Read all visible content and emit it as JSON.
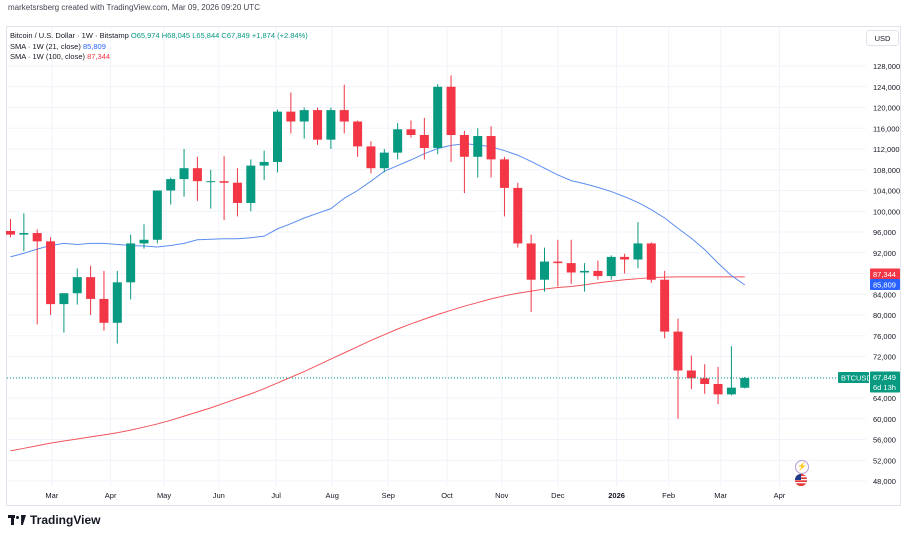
{
  "header": {
    "publisher_line": "marketsrsberg created with TradingView.com, Mar 09, 2026 09:20 UTC"
  },
  "legend": {
    "symbol_line": "Bitcoin / U.S. Dollar · 1W · Bitstamp",
    "ohlc": {
      "o": "O65,974",
      "h": "H68,045",
      "l": "L65,844",
      "c": "C67,849",
      "change": "+1,874 (+2.84%)"
    },
    "sma21_label": "SMA · 1W (21, close)",
    "sma21_value": "85,809",
    "sma100_label": "SMA · 1W (100, close)",
    "sma100_value": "87,344"
  },
  "currency_button": "USD",
  "footer_logo_text": "TradingView",
  "colors": {
    "up": "#089981",
    "down": "#f23645",
    "sma21": "#5b8def",
    "sma100": "#f2545b",
    "grid": "#f0f3fa",
    "axis_text": "#131722"
  },
  "icons": [
    "tradingview-logo-icon",
    "lightning-icon",
    "us-flag-icon"
  ],
  "chart_data": {
    "type": "candlestick",
    "timeframe": "1W",
    "y_axis": {
      "ylim": [
        44000,
        132000
      ],
      "tick_labels": [
        "48,000",
        "52,000",
        "56,000",
        "60,000",
        "64,000",
        "68,000",
        "72,000",
        "76,000",
        "80,000",
        "84,000",
        "88,000",
        "92,000",
        "96,000",
        "100,000",
        "104,000",
        "108,000",
        "112,000",
        "116,000",
        "120,000",
        "124,000",
        "128,000"
      ],
      "tick_values": [
        48000,
        52000,
        56000,
        60000,
        64000,
        68000,
        72000,
        76000,
        80000,
        84000,
        88000,
        92000,
        96000,
        100000,
        104000,
        108000,
        112000,
        116000,
        120000,
        124000,
        128000
      ]
    },
    "x_axis": {
      "labels": [
        "Mar",
        "Apr",
        "May",
        "Jun",
        "Jul",
        "Aug",
        "Sep",
        "Oct",
        "Nov",
        "Dec",
        "2026",
        "Feb",
        "Mar",
        "Apr"
      ],
      "label_week_index": [
        3.1,
        7.5,
        11.5,
        15.6,
        19.9,
        24.1,
        28.3,
        32.7,
        36.8,
        41,
        45.4,
        49.3,
        53.2,
        57.6
      ]
    },
    "grid": true,
    "candles": [
      {
        "o": 96200,
        "h": 98500,
        "l": 95000,
        "c": 95500
      },
      {
        "o": 95500,
        "h": 99600,
        "l": 92300,
        "c": 95800
      },
      {
        "o": 95800,
        "h": 96500,
        "l": 78200,
        "c": 94200
      },
      {
        "o": 94200,
        "h": 95000,
        "l": 80000,
        "c": 82100
      },
      {
        "o": 82100,
        "h": 84000,
        "l": 76600,
        "c": 84200
      },
      {
        "o": 84200,
        "h": 89000,
        "l": 82000,
        "c": 87300
      },
      {
        "o": 87300,
        "h": 89500,
        "l": 80000,
        "c": 83100
      },
      {
        "o": 83100,
        "h": 88500,
        "l": 77000,
        "c": 78500
      },
      {
        "o": 78500,
        "h": 88500,
        "l": 74500,
        "c": 86300
      },
      {
        "o": 86300,
        "h": 95500,
        "l": 83000,
        "c": 93800
      },
      {
        "o": 93800,
        "h": 97500,
        "l": 92800,
        "c": 94500
      },
      {
        "o": 94500,
        "h": 104000,
        "l": 93800,
        "c": 104000
      },
      {
        "o": 104000,
        "h": 106500,
        "l": 101300,
        "c": 106200
      },
      {
        "o": 106200,
        "h": 112000,
        "l": 102800,
        "c": 108300
      },
      {
        "o": 108300,
        "h": 110500,
        "l": 102000,
        "c": 105800
      },
      {
        "o": 105800,
        "h": 108000,
        "l": 100500,
        "c": 105800
      },
      {
        "o": 105800,
        "h": 110600,
        "l": 98300,
        "c": 105500
      },
      {
        "o": 105500,
        "h": 108300,
        "l": 99000,
        "c": 101600
      },
      {
        "o": 101600,
        "h": 110000,
        "l": 100000,
        "c": 108800
      },
      {
        "o": 108800,
        "h": 111700,
        "l": 106000,
        "c": 109500
      },
      {
        "o": 109500,
        "h": 119600,
        "l": 107500,
        "c": 119200
      },
      {
        "o": 119200,
        "h": 122900,
        "l": 115000,
        "c": 117300
      },
      {
        "o": 117300,
        "h": 120000,
        "l": 114000,
        "c": 119500
      },
      {
        "o": 119500,
        "h": 120000,
        "l": 112800,
        "c": 113800
      },
      {
        "o": 113800,
        "h": 120000,
        "l": 112000,
        "c": 119500
      },
      {
        "o": 119500,
        "h": 124400,
        "l": 115000,
        "c": 117300
      },
      {
        "o": 117300,
        "h": 117500,
        "l": 110500,
        "c": 112500
      },
      {
        "o": 112500,
        "h": 113500,
        "l": 107300,
        "c": 108300
      },
      {
        "o": 108300,
        "h": 112000,
        "l": 107500,
        "c": 111300
      },
      {
        "o": 111300,
        "h": 117000,
        "l": 110000,
        "c": 115800
      },
      {
        "o": 115800,
        "h": 117500,
        "l": 114200,
        "c": 114700
      },
      {
        "o": 114700,
        "h": 118000,
        "l": 110000,
        "c": 112200
      },
      {
        "o": 112200,
        "h": 124500,
        "l": 111000,
        "c": 124000
      },
      {
        "o": 124000,
        "h": 126200,
        "l": 109500,
        "c": 114700
      },
      {
        "o": 114700,
        "h": 115500,
        "l": 103500,
        "c": 110500
      },
      {
        "o": 110500,
        "h": 116000,
        "l": 106500,
        "c": 114500
      },
      {
        "o": 114500,
        "h": 116400,
        "l": 106500,
        "c": 110000
      },
      {
        "o": 110000,
        "h": 110500,
        "l": 99000,
        "c": 104500
      },
      {
        "o": 104500,
        "h": 105500,
        "l": 93000,
        "c": 93800
      },
      {
        "o": 93800,
        "h": 95500,
        "l": 80600,
        "c": 86800
      },
      {
        "o": 86800,
        "h": 93000,
        "l": 84500,
        "c": 90300
      },
      {
        "o": 90300,
        "h": 94500,
        "l": 85500,
        "c": 90000
      },
      {
        "o": 90000,
        "h": 94500,
        "l": 86000,
        "c": 88200
      },
      {
        "o": 88200,
        "h": 90000,
        "l": 84500,
        "c": 88500
      },
      {
        "o": 88500,
        "h": 90500,
        "l": 86800,
        "c": 87500
      },
      {
        "o": 87500,
        "h": 91500,
        "l": 86800,
        "c": 91200
      },
      {
        "o": 91200,
        "h": 91800,
        "l": 88000,
        "c": 90700
      },
      {
        "o": 90700,
        "h": 97900,
        "l": 89000,
        "c": 93800
      },
      {
        "o": 93800,
        "h": 94000,
        "l": 86200,
        "c": 86800
      },
      {
        "o": 86800,
        "h": 88500,
        "l": 75500,
        "c": 76800
      },
      {
        "o": 76800,
        "h": 79300,
        "l": 60000,
        "c": 69300
      },
      {
        "o": 69300,
        "h": 72200,
        "l": 65700,
        "c": 67800
      },
      {
        "o": 67800,
        "h": 70500,
        "l": 64800,
        "c": 66700
      },
      {
        "o": 66700,
        "h": 70000,
        "l": 62800,
        "c": 64700
      },
      {
        "o": 64700,
        "h": 74000,
        "l": 64500,
        "c": 66000
      },
      {
        "o": 65974,
        "h": 68045,
        "l": 65844,
        "c": 67849
      }
    ],
    "series": [
      {
        "name": "SMA · 1W (21, close)",
        "color": "#5b8def",
        "values": [
          91200,
          91900,
          92700,
          93400,
          93800,
          93600,
          93800,
          93800,
          93600,
          93400,
          93300,
          93100,
          93400,
          93800,
          94500,
          94600,
          94700,
          94700,
          94900,
          95200,
          96600,
          97600,
          98700,
          99600,
          100500,
          102500,
          104000,
          105800,
          107700,
          108800,
          109900,
          111100,
          112100,
          112700,
          113000,
          112800,
          112400,
          111700,
          110800,
          109600,
          108300,
          107000,
          105900,
          105300,
          104600,
          103800,
          102800,
          101700,
          100300,
          98700,
          96700,
          94800,
          92600,
          90000,
          87600,
          85809
        ]
      },
      {
        "name": "SMA · 1W (100, close)",
        "color": "#f2545b",
        "values": [
          53800,
          54300,
          54800,
          55300,
          55700,
          56100,
          56500,
          56900,
          57300,
          57800,
          58400,
          59000,
          59700,
          60500,
          61300,
          62100,
          63000,
          63900,
          64800,
          65800,
          66900,
          68000,
          69100,
          70300,
          71500,
          72700,
          73900,
          75100,
          76200,
          77300,
          78300,
          79200,
          80100,
          80900,
          81700,
          82400,
          83100,
          83700,
          84200,
          84600,
          85000,
          85300,
          85500,
          85800,
          86200,
          86500,
          86800,
          87000,
          87200,
          87300,
          87350,
          87350,
          87350,
          87344,
          87344,
          87344
        ]
      }
    ],
    "price_tags": [
      {
        "label": "87,344",
        "value": 87344,
        "color": "#f23645"
      },
      {
        "label": "85,809",
        "value": 85809,
        "color": "#2962ff"
      },
      {
        "label": "BTCUSD",
        "value": 67849,
        "color": "#089981"
      },
      {
        "label": "67,849",
        "value": 67849,
        "color": "#089981"
      },
      {
        "label": "6d 13h",
        "value": 67849,
        "color": "#089981"
      }
    ]
  }
}
